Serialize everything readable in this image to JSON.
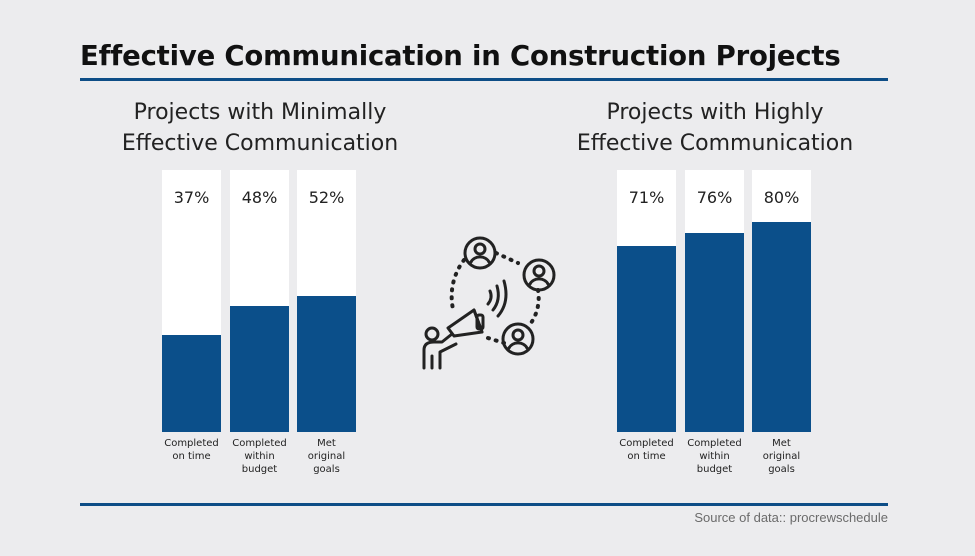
{
  "title": "Effective Communication in Construction Projects",
  "source": "Source of data:: procrewschedule",
  "colors": {
    "bar": "#0b4f8a",
    "rule": "#0d4d86",
    "background": "#ececee"
  },
  "chart_data": [
    {
      "type": "bar",
      "title_lines": [
        "Projects with Minimally",
        "Effective Communication"
      ],
      "categories": [
        [
          "Completed",
          "on time"
        ],
        [
          "Completed",
          "within",
          "budget"
        ],
        [
          "Met",
          "original",
          "goals"
        ]
      ],
      "values": [
        37,
        48,
        52
      ],
      "value_labels": [
        "37%",
        "48%",
        "52%"
      ],
      "ylim": [
        0,
        100
      ]
    },
    {
      "type": "bar",
      "title_lines": [
        "Projects with Highly",
        "Effective Communication"
      ],
      "categories": [
        [
          "Completed",
          "on time"
        ],
        [
          "Completed",
          "within",
          "budget"
        ],
        [
          "Met",
          "original",
          "goals"
        ]
      ],
      "values": [
        71,
        76,
        80
      ],
      "value_labels": [
        "71%",
        "76%",
        "80%"
      ],
      "ylim": [
        0,
        100
      ]
    }
  ],
  "icons": {
    "center": "megaphone-people-network-icon"
  }
}
